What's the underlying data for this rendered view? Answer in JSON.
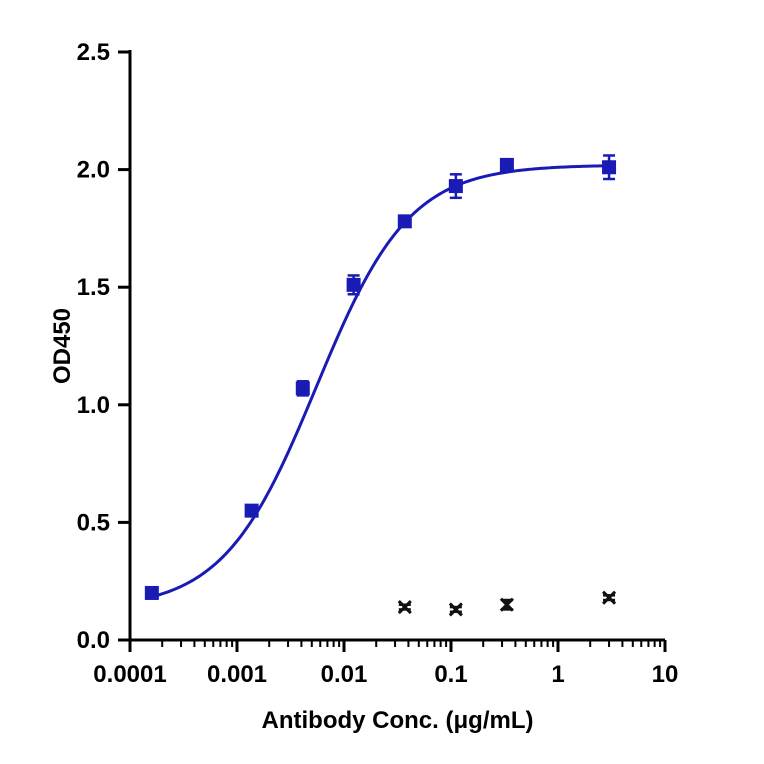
{
  "chart_data": {
    "type": "scatter",
    "title": "",
    "xlabel": "Antibody Conc. (μg/mL)",
    "ylabel": "OD450",
    "x_scale": "log",
    "xlim": [
      0.0001,
      10
    ],
    "ylim": [
      0,
      2.5
    ],
    "x_ticks": [
      "0.0001",
      "0.001",
      "0.01",
      "0.1",
      "1",
      "10"
    ],
    "y_ticks": [
      "0.0",
      "0.5",
      "1.0",
      "1.5",
      "2.0",
      "2.5"
    ],
    "grid": false,
    "legend": "none",
    "series": [
      {
        "marker": "square",
        "color": "#1a1ab4",
        "fit_line": "sigmoidal",
        "points": [
          {
            "x": 0.00016,
            "y": 0.2,
            "err": 0.01
          },
          {
            "x": 0.00137,
            "y": 0.55,
            "err": 0.01
          },
          {
            "x": 0.00412,
            "y": 1.07,
            "err": 0.03
          },
          {
            "x": 0.0123,
            "y": 1.51,
            "err": 0.04
          },
          {
            "x": 0.037,
            "y": 1.78,
            "err": 0.02
          },
          {
            "x": 0.111,
            "y": 1.93,
            "err": 0.05
          },
          {
            "x": 0.333,
            "y": 2.02,
            "err": 0.02
          },
          {
            "x": 3.0,
            "y": 2.01,
            "err": 0.05
          }
        ]
      },
      {
        "marker": "x",
        "color": "#111111",
        "points": [
          {
            "x": 0.037,
            "y": 0.14,
            "err": 0.01
          },
          {
            "x": 0.111,
            "y": 0.13,
            "err": 0.01
          },
          {
            "x": 0.333,
            "y": 0.15,
            "err": 0.02
          },
          {
            "x": 3.0,
            "y": 0.18,
            "err": 0.01
          }
        ]
      }
    ]
  }
}
